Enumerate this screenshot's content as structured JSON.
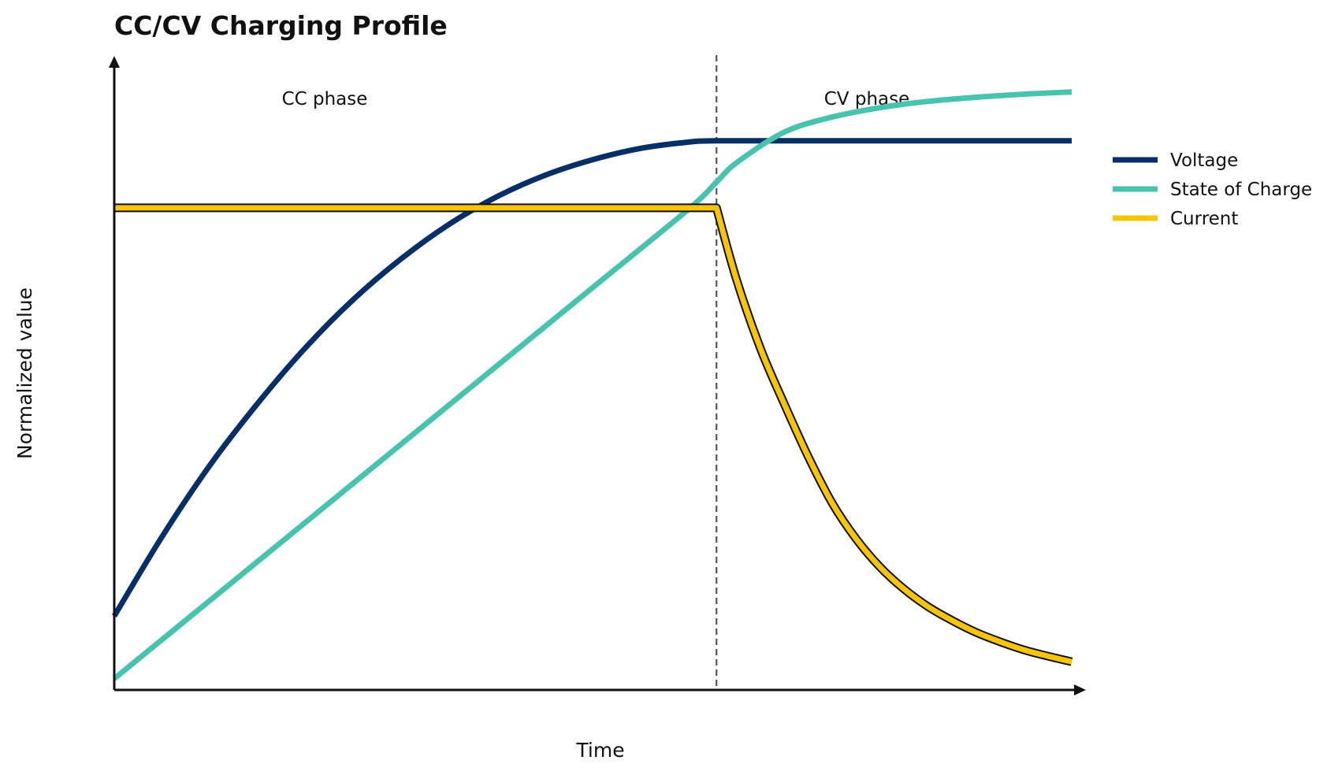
{
  "chart_data": {
    "type": "line",
    "title": "CC/CV Charging Profile",
    "xlabel": "Time",
    "ylabel": "Normalized value",
    "xlim": [
      0,
      1
    ],
    "ylim": [
      0,
      1
    ],
    "grid": false,
    "legend_position": "right",
    "x_ticks_shown": false,
    "y_ticks_shown": false,
    "phase_boundary_x": 0.629,
    "phase_labels": [
      "CC phase",
      "CV phase"
    ],
    "series": [
      {
        "name": "Voltage",
        "color": "#062e67",
        "x": [
          0,
          0.05,
          0.1,
          0.15,
          0.2,
          0.25,
          0.3,
          0.35,
          0.4,
          0.45,
          0.5,
          0.55,
          0.6,
          0.629,
          0.7,
          0.8,
          0.9,
          1.0
        ],
        "values": [
          0.118,
          0.245,
          0.359,
          0.458,
          0.547,
          0.624,
          0.689,
          0.744,
          0.788,
          0.822,
          0.847,
          0.865,
          0.875,
          0.877,
          0.877,
          0.877,
          0.877,
          0.877
        ]
      },
      {
        "name": "State of Charge",
        "color": "#48c4ae",
        "x": [
          0,
          0.1,
          0.2,
          0.3,
          0.4,
          0.5,
          0.6,
          0.629,
          0.65,
          0.7,
          0.75,
          0.8,
          0.85,
          0.9,
          0.95,
          1.0
        ],
        "values": [
          0.018,
          0.143,
          0.268,
          0.393,
          0.518,
          0.643,
          0.768,
          0.811,
          0.842,
          0.891,
          0.915,
          0.93,
          0.94,
          0.9465,
          0.9515,
          0.955
        ]
      },
      {
        "name": "Current",
        "color": "#f7c406",
        "x": [
          0,
          0.1,
          0.2,
          0.3,
          0.4,
          0.5,
          0.6,
          0.629,
          0.65,
          0.675,
          0.7,
          0.725,
          0.75,
          0.775,
          0.8,
          0.825,
          0.85,
          0.875,
          0.9,
          0.925,
          0.95,
          0.975,
          1.0
        ],
        "values": [
          0.77,
          0.77,
          0.77,
          0.77,
          0.77,
          0.77,
          0.77,
          0.77,
          0.655,
          0.545,
          0.456,
          0.372,
          0.298,
          0.241,
          0.196,
          0.161,
          0.133,
          0.111,
          0.092,
          0.077,
          0.064,
          0.054,
          0.045
        ]
      }
    ]
  }
}
